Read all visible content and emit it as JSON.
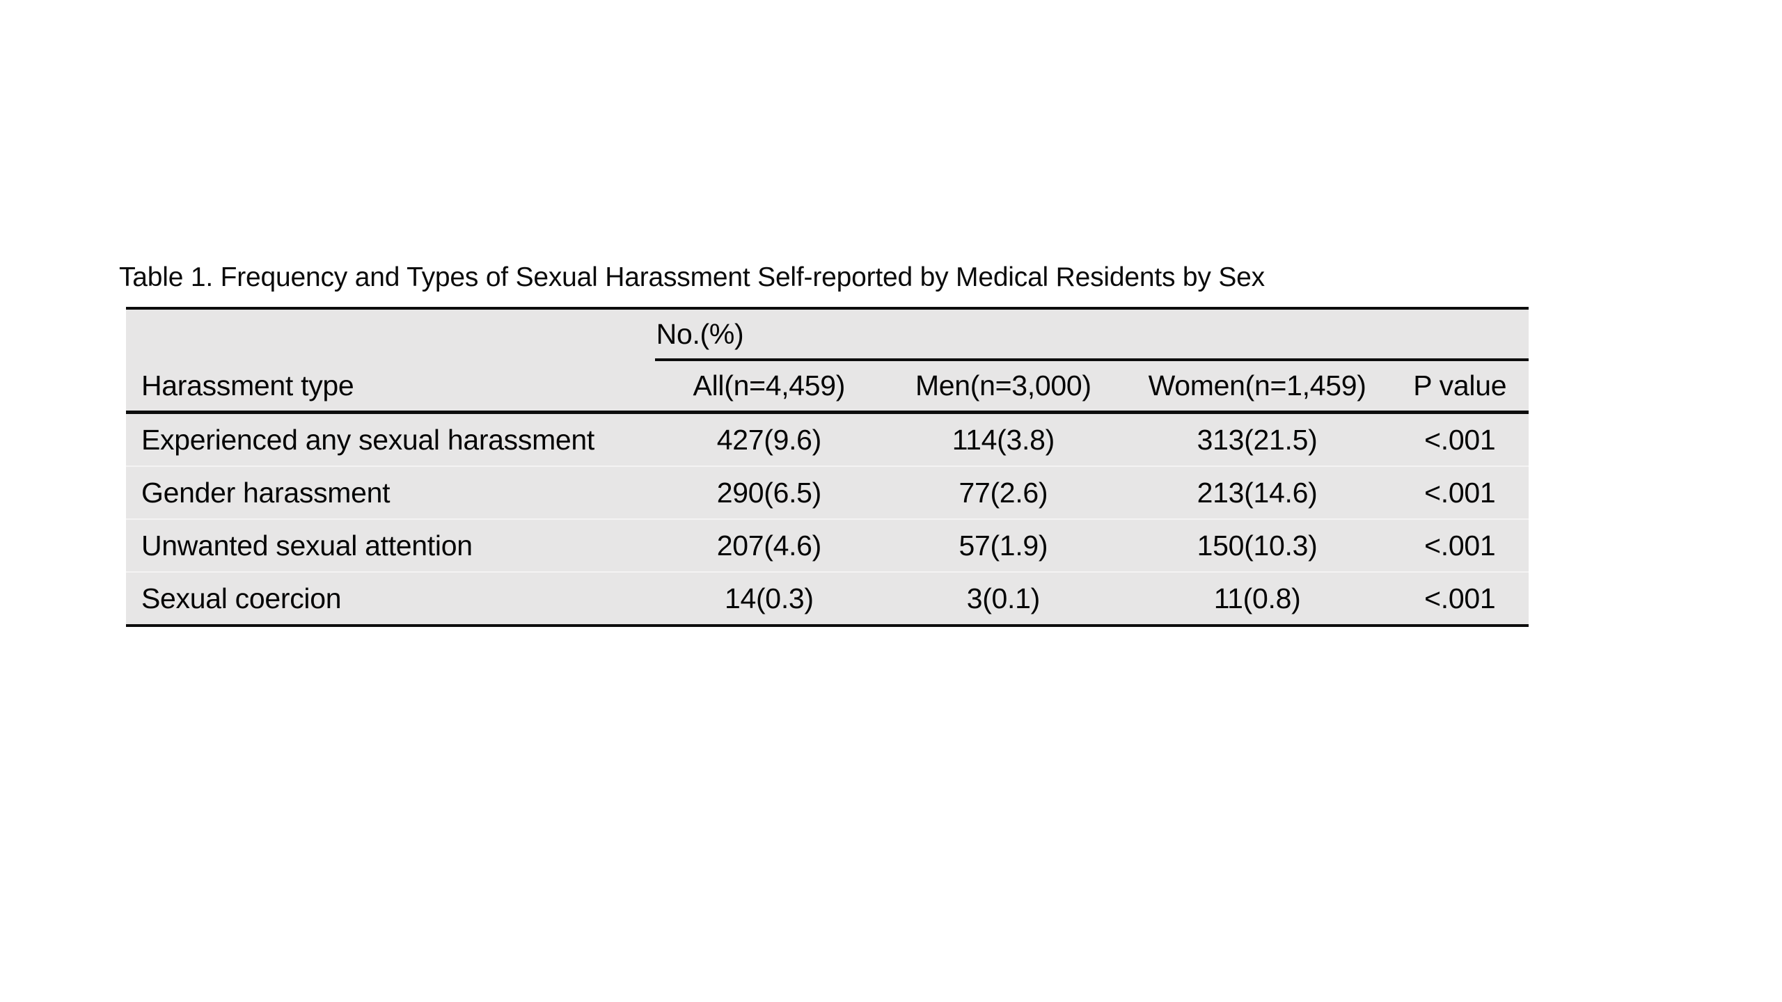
{
  "title": "Table 1. Frequency and Types of Sexual Harassment Self-reported by Medical Residents by Sex",
  "table": {
    "group_header": "No.(%)",
    "columns": [
      "Harassment type",
      "All(n=4,459)",
      "Men(n=3,000)",
      "Women(n=1,459)",
      "P value"
    ],
    "rows": [
      {
        "type": "Experienced any sexual harassment",
        "all": "427(9.6)",
        "men": "114(3.8)",
        "women": "313(21.5)",
        "p": "<.001"
      },
      {
        "type": "Gender harassment",
        "all": "290(6.5)",
        "men": "77(2.6)",
        "women": "213(14.6)",
        "p": "<.001"
      },
      {
        "type": "Unwanted sexual attention",
        "all": "207(4.6)",
        "men": "57(1.9)",
        "women": "150(10.3)",
        "p": "<.001"
      },
      {
        "type": "Sexual coercion",
        "all": "14(0.3)",
        "men": "3(0.1)",
        "women": "11(0.8)",
        "p": "<.001"
      }
    ],
    "colors": {
      "cell_background": "#e7e6e6",
      "rule": "#0d0d0d",
      "row_separator": "#f4f3f3",
      "text": "#050505"
    }
  }
}
